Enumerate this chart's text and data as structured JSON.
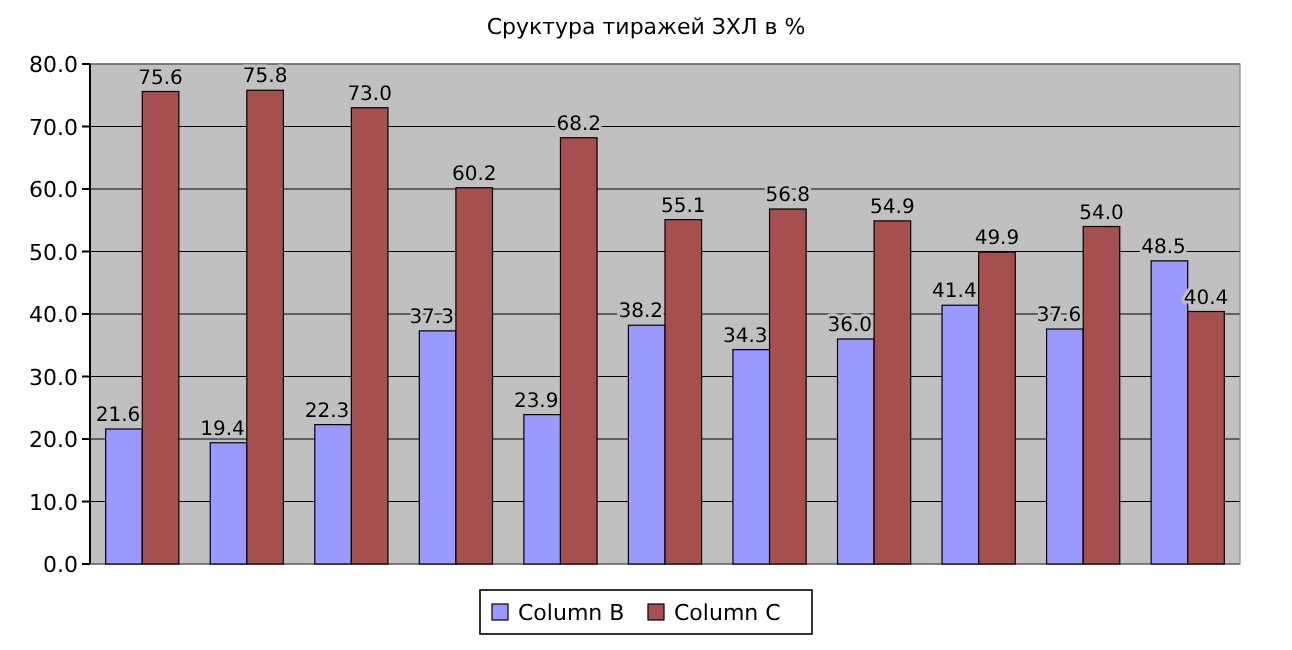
{
  "chart_data": {
    "type": "bar",
    "title": "Сруктура тиражей ЗХЛ в %",
    "categories": [
      null,
      null,
      null,
      null,
      null,
      null,
      null,
      null,
      null,
      null,
      null
    ],
    "series": [
      {
        "name": "Column B",
        "color": "#9999ff",
        "values": [
          21.6,
          19.4,
          22.3,
          37.3,
          23.9,
          38.2,
          34.3,
          36.0,
          41.4,
          37.6,
          48.5
        ],
        "value_labels": [
          "21.6",
          "19.4",
          "22.3",
          "37.3",
          "23.9",
          "38.2",
          "34.3",
          "36.0",
          "41.4",
          "37.6",
          "48.5"
        ]
      },
      {
        "name": "Column C",
        "color": "#a5504f",
        "values": [
          75.6,
          75.8,
          73.0,
          60.2,
          68.2,
          55.1,
          56.8,
          54.9,
          49.9,
          54.0,
          40.4
        ],
        "value_labels": [
          "75.6",
          "75.8",
          "73.0",
          "60.2",
          "68.2",
          "55.1",
          "56.8",
          "54.9",
          "49.9",
          "54.0",
          "40.4"
        ]
      }
    ],
    "ylim": [
      0,
      80
    ],
    "yticks": [
      {
        "value": 0,
        "label": "0.0"
      },
      {
        "value": 10,
        "label": "10.0"
      },
      {
        "value": 20,
        "label": "20.0"
      },
      {
        "value": 30,
        "label": "30.0"
      },
      {
        "value": 40,
        "label": "40.0"
      },
      {
        "value": 50,
        "label": "50.0"
      },
      {
        "value": 60,
        "label": "60.0"
      },
      {
        "value": 70,
        "label": "70.0"
      },
      {
        "value": 80,
        "label": "80.0"
      }
    ],
    "grid": "y",
    "legend": "bottom"
  }
}
